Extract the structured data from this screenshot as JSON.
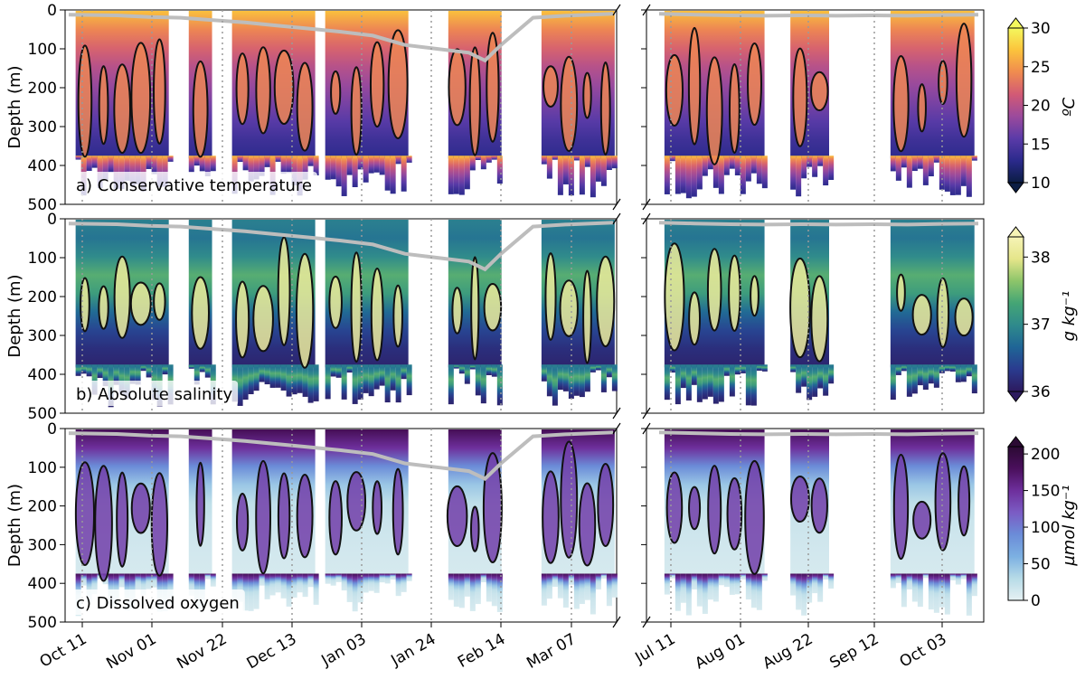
{
  "chart_data": {
    "type": "heatmap",
    "x_tick_labels_left": [
      "Oct 11",
      "Nov 01",
      "Nov 22",
      "Dec 13",
      "Jan 03",
      "Jan 24",
      "Feb 14",
      "Mar 07"
    ],
    "x_tick_labels_right": [
      "Jul 11",
      "Aug 01",
      "Aug 22",
      "Sep 12",
      "Oct 03"
    ],
    "ylabel": "Depth (m)",
    "y_ticks": [
      0,
      100,
      200,
      300,
      400,
      500
    ],
    "ylim": [
      500,
      0
    ],
    "observation_blocks_left": [
      [
        "Oct 09",
        "Nov 06"
      ],
      [
        "Nov 12",
        "Nov 19"
      ],
      [
        "Nov 25",
        "Dec 20"
      ],
      [
        "Dec 23",
        "Jan 17"
      ],
      [
        "Jan 29",
        "Feb 14"
      ],
      [
        "Feb 26",
        "Mar 20"
      ]
    ],
    "observation_blocks_right": [
      [
        "Jul 09",
        "Aug 09"
      ],
      [
        "Aug 17",
        "Aug 29"
      ],
      [
        "Sep 17",
        "Oct 13"
      ]
    ],
    "mixed_layer_depth_m": {
      "left": [
        [
          0,
          12
        ],
        [
          6,
          14
        ],
        [
          10,
          18
        ],
        [
          14,
          20
        ],
        [
          18,
          26
        ],
        [
          22,
          32
        ],
        [
          26,
          40
        ],
        [
          30,
          48
        ],
        [
          34,
          56
        ],
        [
          38,
          66
        ],
        [
          42,
          90
        ],
        [
          46,
          100
        ],
        [
          50,
          110
        ],
        [
          52,
          130
        ],
        [
          54,
          90
        ],
        [
          58,
          20
        ],
        [
          62,
          15
        ],
        [
          68,
          10
        ]
      ],
      "right": [
        [
          0,
          10
        ],
        [
          10,
          12
        ],
        [
          20,
          14
        ],
        [
          30,
          15
        ],
        [
          40,
          14
        ],
        [
          50,
          15
        ],
        [
          60,
          14
        ],
        [
          70,
          15
        ],
        [
          80,
          13
        ],
        [
          90,
          12
        ]
      ]
    },
    "panels": [
      {
        "label": "a) Conservative temperature",
        "variable": "Conservative temperature",
        "colorbar_unit": "ºC",
        "colorbar_ticks": [
          10,
          15,
          20,
          25,
          30
        ],
        "colorbar_range": [
          10,
          30
        ],
        "colormap": [
          "#0b1d44",
          "#2b2a8c",
          "#5b3ba8",
          "#9b4a9c",
          "#d25a75",
          "#f08b4f",
          "#fbc33c",
          "#f4f85d"
        ],
        "profile_surface_to_500m": [
          27,
          24,
          22,
          20,
          18.5,
          17,
          15.5,
          14,
          13
        ]
      },
      {
        "label": "b) Absolute salinity",
        "variable": "Absolute salinity",
        "colorbar_unit": "g kg⁻¹",
        "colorbar_ticks": [
          36,
          37,
          38
        ],
        "colorbar_range": [
          36,
          38.3
        ],
        "colormap": [
          "#2d1a5e",
          "#2a3b8f",
          "#1f6596",
          "#2f8a8c",
          "#44a575",
          "#8dc56a",
          "#e5e58a",
          "#f6f4b6"
        ],
        "profile_surface_to_500m": [
          36.9,
          36.8,
          37.0,
          37.4,
          37.2,
          36.7,
          36.4,
          36.2,
          36.1
        ]
      },
      {
        "label": "c) Dissolved oxygen",
        "variable": "Dissolved oxygen",
        "colorbar_unit": "µmol kg⁻¹",
        "colorbar_ticks": [
          0,
          50,
          100,
          150,
          200
        ],
        "colorbar_range": [
          0,
          210
        ],
        "colormap": [
          "#e6f1f3",
          "#b7dbe7",
          "#7cb0e2",
          "#6b8cd8",
          "#7b5cc4",
          "#6e2f9c",
          "#4a0f5c",
          "#2b0a33"
        ],
        "profile_surface_to_500m": [
          185,
          150,
          90,
          45,
          25,
          18,
          15,
          12,
          10
        ]
      }
    ]
  }
}
